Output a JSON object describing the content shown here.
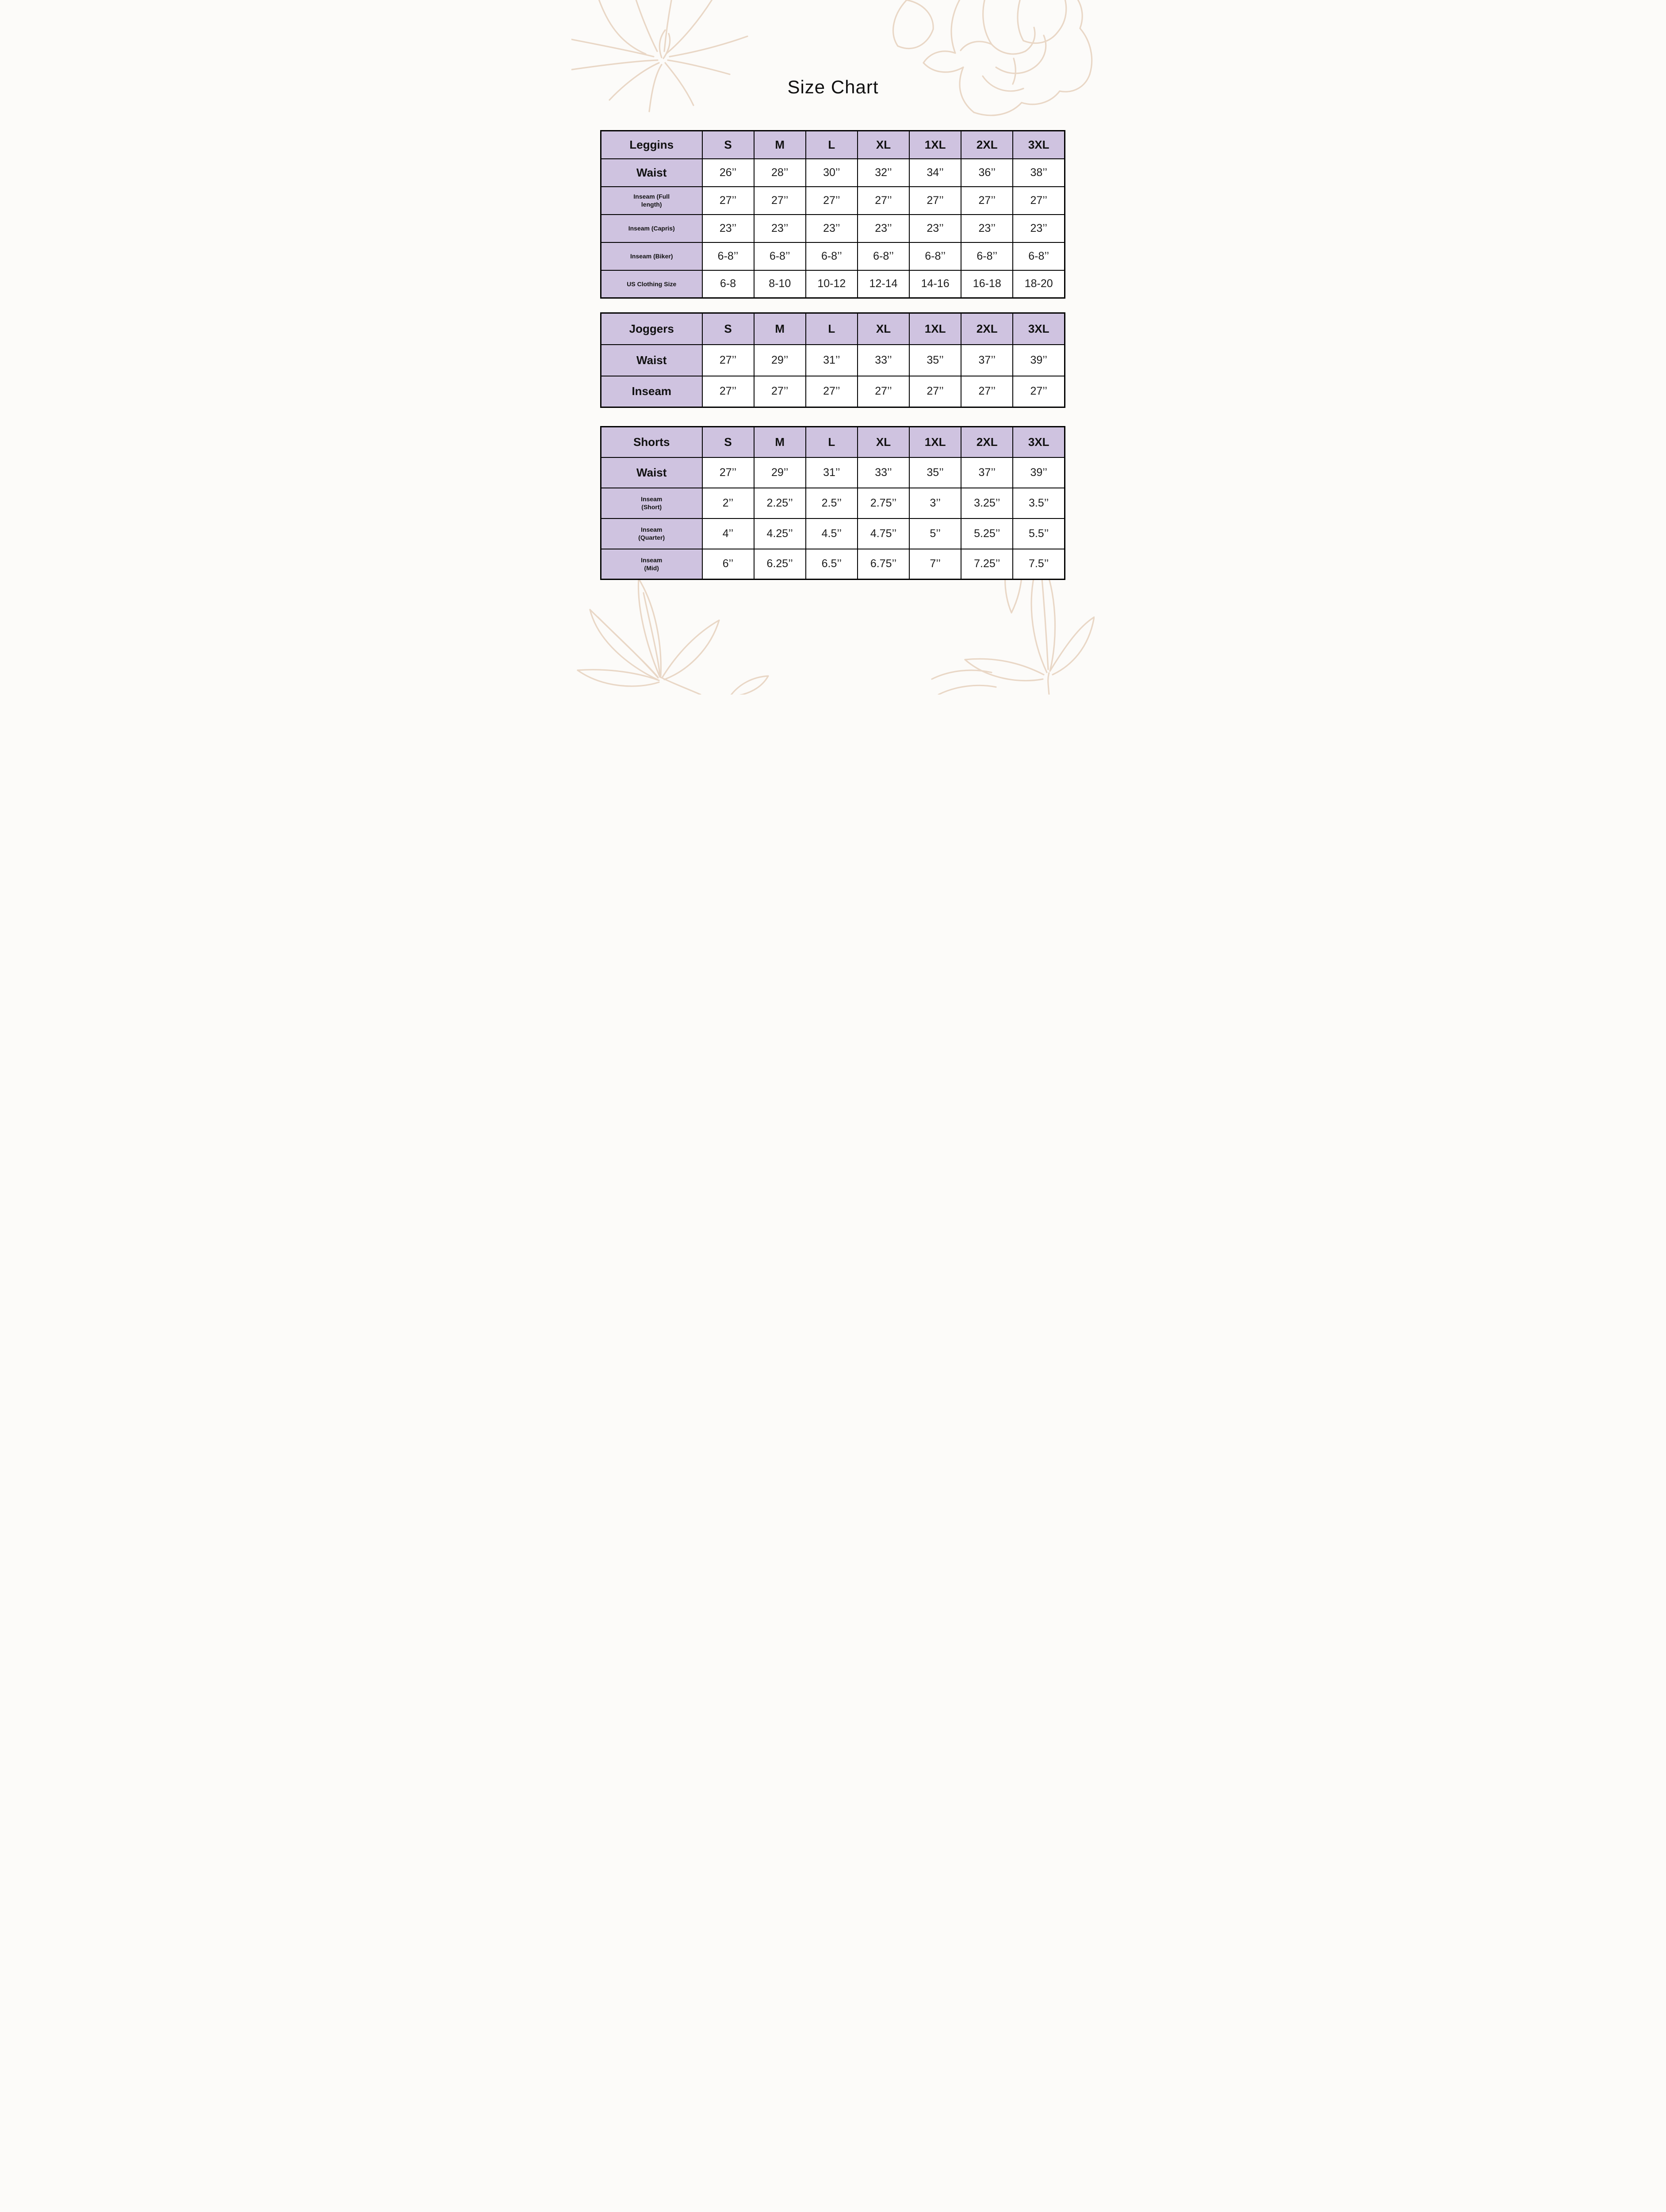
{
  "title": "Size Chart",
  "colors": {
    "header_fill": "#cfc3e0",
    "cell_fill": "#ffffff",
    "border": "#000000",
    "page_bg": "#fcfbf9",
    "floral_stroke": "#e9d7c6",
    "label_text": "#111111",
    "value_text": "#1c1c1c"
  },
  "decorations": [
    "flower-top-left",
    "flower-top-right",
    "leaf-branch-bottom-left",
    "leaf-branch-bottom-right"
  ],
  "tables": [
    {
      "name": "Leggins",
      "sizes": [
        "S",
        "M",
        "L",
        "XL",
        "1XL",
        "2XL",
        "3XL"
      ],
      "rows": [
        {
          "label": "Waist",
          "emphasis": "lg",
          "values": [
            "26’’",
            "28’’",
            "30’’",
            "32’’",
            "34’’",
            "36’’",
            "38’’"
          ]
        },
        {
          "label": "Inseam (Full\nlength)",
          "emphasis": "sm",
          "values": [
            "27’’",
            "27’’",
            "27’’",
            "27’’",
            "27’’",
            "27’’",
            "27’’"
          ]
        },
        {
          "label": "Inseam (Capris)",
          "emphasis": "sm",
          "values": [
            "23’’",
            "23’’",
            "23’’",
            "23’’",
            "23’’",
            "23’’",
            "23’’"
          ]
        },
        {
          "label": "Inseam (Biker)",
          "emphasis": "sm",
          "values": [
            "6-8’’",
            "6-8’’",
            "6-8’’",
            "6-8’’",
            "6-8’’",
            "6-8’’",
            "6-8’’"
          ]
        },
        {
          "label": "US Clothing Size",
          "emphasis": "sm",
          "values": [
            "6-8",
            "8-10",
            "10-12",
            "12-14",
            "14-16",
            "16-18",
            "18-20"
          ]
        }
      ]
    },
    {
      "name": "Joggers",
      "sizes": [
        "S",
        "M",
        "L",
        "XL",
        "1XL",
        "2XL",
        "3XL"
      ],
      "rows": [
        {
          "label": "Waist",
          "emphasis": "lg",
          "values": [
            "27’’",
            "29’’",
            "31’’",
            "33’’",
            "35’’",
            "37’’",
            "39’’"
          ]
        },
        {
          "label": "Inseam",
          "emphasis": "lg",
          "values": [
            "27’’",
            "27’’",
            "27’’",
            "27’’",
            "27’’",
            "27’’",
            "27’’"
          ]
        }
      ]
    },
    {
      "name": "Shorts",
      "sizes": [
        "S",
        "M",
        "L",
        "XL",
        "1XL",
        "2XL",
        "3XL"
      ],
      "rows": [
        {
          "label": "Waist",
          "emphasis": "lg",
          "values": [
            "27’’",
            "29’’",
            "31’’",
            "33’’",
            "35’’",
            "37’’",
            "39’’"
          ]
        },
        {
          "label": "Inseam\n(Short)",
          "emphasis": "sm",
          "values": [
            "2’’",
            "2.25’’",
            "2.5’’",
            "2.75’’",
            "3’’",
            "3.25’’",
            "3.5’’"
          ]
        },
        {
          "label": "Inseam\n(Quarter)",
          "emphasis": "sm",
          "values": [
            "4’’",
            "4.25’’",
            "4.5’’",
            "4.75’’",
            "5’’",
            "5.25’’",
            "5.5’’"
          ]
        },
        {
          "label": "Inseam\n(Mid)",
          "emphasis": "sm",
          "values": [
            "6’’",
            "6.25’’",
            "6.5’’",
            "6.75’’",
            "7’’",
            "7.25’’",
            "7.5’’"
          ]
        }
      ]
    }
  ]
}
